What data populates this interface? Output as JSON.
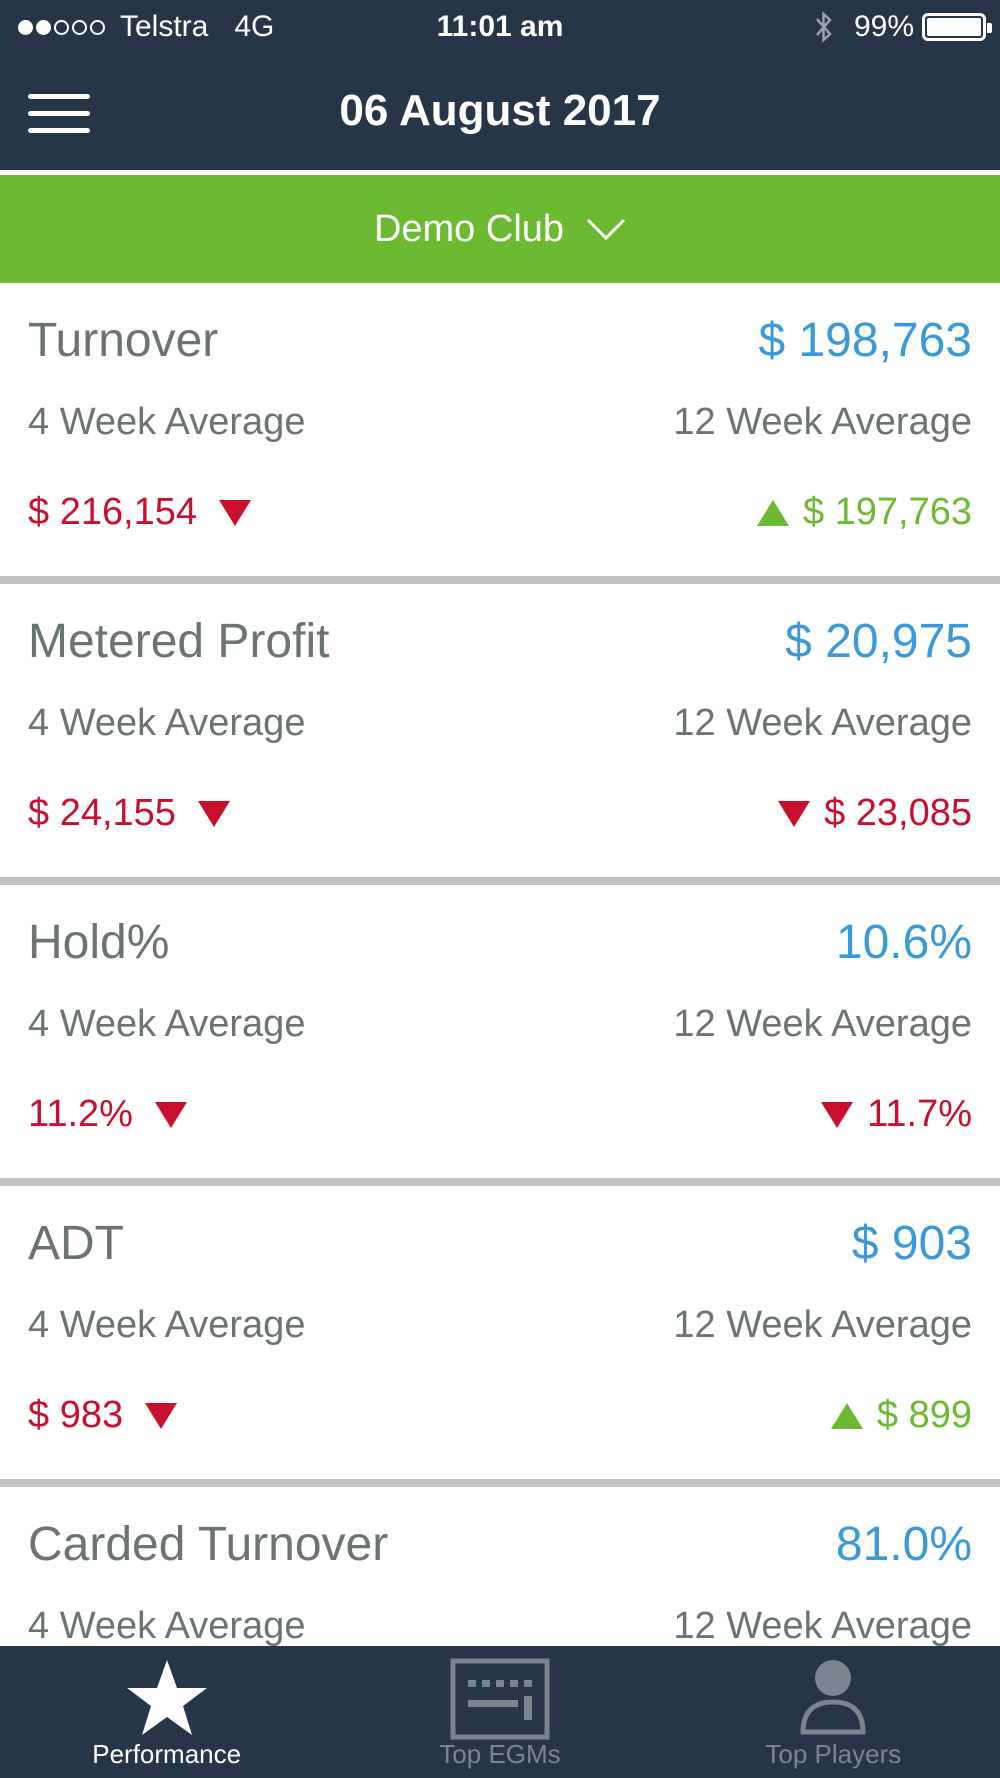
{
  "status_bar": {
    "carrier": "Telstra",
    "network": "4G",
    "time": "11:01 am",
    "battery": "99%",
    "battery_level": 0.99,
    "signal_strength_dots": 2
  },
  "nav": {
    "title": "06 August 2017"
  },
  "club_selector": {
    "label": "Demo Club"
  },
  "avg_labels": {
    "four_week": "4 Week Average",
    "twelve_week": "12 Week Average"
  },
  "metrics": [
    {
      "name": "Turnover",
      "value": "$ 198,763",
      "avg4": {
        "value": "$ 216,154",
        "trend": "down"
      },
      "avg12": {
        "value": "$ 197,763",
        "trend": "up"
      }
    },
    {
      "name": "Metered Profit",
      "value": "$ 20,975",
      "avg4": {
        "value": "$ 24,155",
        "trend": "down"
      },
      "avg12": {
        "value": "$ 23,085",
        "trend": "down"
      }
    },
    {
      "name": "Hold%",
      "value": "10.6%",
      "avg4": {
        "value": "11.2%",
        "trend": "down"
      },
      "avg12": {
        "value": "11.7%",
        "trend": "down"
      }
    },
    {
      "name": "ADT",
      "value": "$ 903",
      "avg4": {
        "value": "$ 983",
        "trend": "down"
      },
      "avg12": {
        "value": "$ 899",
        "trend": "up"
      }
    },
    {
      "name": "Carded Turnover",
      "value": "81.0%",
      "avg4": {
        "value": "",
        "trend": ""
      },
      "avg12": {
        "value": "",
        "trend": ""
      }
    }
  ],
  "tabs": [
    {
      "label": "Performance",
      "icon": "star-icon",
      "active": true
    },
    {
      "label": "Top EGMs",
      "icon": "egm-icon",
      "active": false
    },
    {
      "label": "Top Players",
      "icon": "person-icon",
      "active": false
    }
  ],
  "colors": {
    "header_bg": "#263548",
    "accent_green": "#6cb932",
    "value_blue": "#3a9ad9",
    "trend_down_red": "#c8102e",
    "label_gray": "#6b7375"
  }
}
